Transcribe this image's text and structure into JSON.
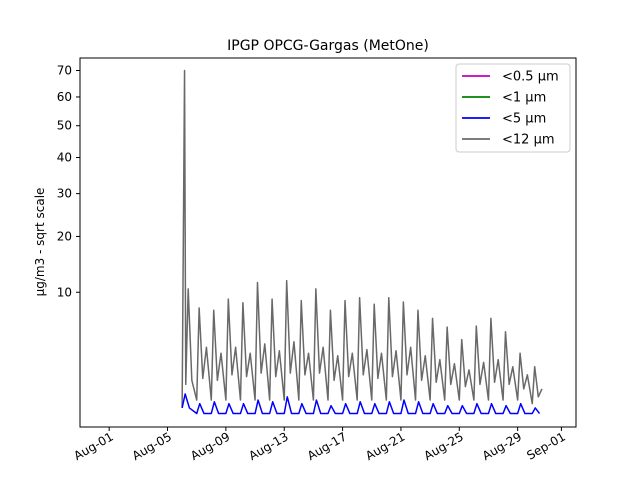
{
  "chart_data": {
    "type": "line",
    "title": "IPGP OPCG-Gargas (MetOne)",
    "xlabel": "",
    "ylabel": "µg/m3 - sqrt scale",
    "y_scale": "sqrt",
    "ylim": [
      0,
      75
    ],
    "yticks": [
      10,
      20,
      30,
      40,
      50,
      60,
      70
    ],
    "xlim": [
      "2023-07-30",
      "2023-09-02"
    ],
    "xticks": [
      {
        "date": "2023-08-01",
        "label": "Aug-01"
      },
      {
        "date": "2023-08-05",
        "label": "Aug-05"
      },
      {
        "date": "2023-08-09",
        "label": "Aug-09"
      },
      {
        "date": "2023-08-13",
        "label": "Aug-13"
      },
      {
        "date": "2023-08-17",
        "label": "Aug-17"
      },
      {
        "date": "2023-08-21",
        "label": "Aug-21"
      },
      {
        "date": "2023-08-25",
        "label": "Aug-25"
      },
      {
        "date": "2023-08-29",
        "label": "Aug-29"
      },
      {
        "date": "2023-09-01",
        "label": "Sep-01"
      }
    ],
    "legend_position": "top-right",
    "grid": false,
    "series": [
      {
        "name": "<0.5 µm",
        "color": "#bf00bf",
        "x": [],
        "y": []
      },
      {
        "name": "<1 µm",
        "color": "#008000",
        "x": [],
        "y": []
      },
      {
        "name": "<5 µm",
        "color": "#0000ff",
        "x": [
          "2023-08-06T00:00",
          "2023-08-06T05:00",
          "2023-08-06T12:00",
          "2023-08-07T00:00",
          "2023-08-07T05:00",
          "2023-08-07T12:00",
          "2023-08-08T00:00",
          "2023-08-08T05:00",
          "2023-08-08T12:00",
          "2023-08-09T00:00",
          "2023-08-09T05:00",
          "2023-08-09T12:00",
          "2023-08-10T00:00",
          "2023-08-10T05:00",
          "2023-08-10T12:00",
          "2023-08-11T00:00",
          "2023-08-11T05:00",
          "2023-08-11T12:00",
          "2023-08-12T00:00",
          "2023-08-12T05:00",
          "2023-08-12T12:00",
          "2023-08-13T00:00",
          "2023-08-13T05:00",
          "2023-08-13T12:00",
          "2023-08-14T00:00",
          "2023-08-14T05:00",
          "2023-08-14T12:00",
          "2023-08-15T00:00",
          "2023-08-15T05:00",
          "2023-08-15T12:00",
          "2023-08-16T00:00",
          "2023-08-16T05:00",
          "2023-08-16T12:00",
          "2023-08-17T00:00",
          "2023-08-17T05:00",
          "2023-08-17T12:00",
          "2023-08-18T00:00",
          "2023-08-18T05:00",
          "2023-08-18T12:00",
          "2023-08-19T00:00",
          "2023-08-19T05:00",
          "2023-08-19T12:00",
          "2023-08-20T00:00",
          "2023-08-20T05:00",
          "2023-08-20T12:00",
          "2023-08-21T00:00",
          "2023-08-21T05:00",
          "2023-08-21T12:00",
          "2023-08-22T00:00",
          "2023-08-22T05:00",
          "2023-08-22T12:00",
          "2023-08-23T00:00",
          "2023-08-23T05:00",
          "2023-08-23T12:00",
          "2023-08-24T00:00",
          "2023-08-24T05:00",
          "2023-08-24T12:00",
          "2023-08-25T00:00",
          "2023-08-25T05:00",
          "2023-08-25T12:00",
          "2023-08-26T00:00",
          "2023-08-26T05:00",
          "2023-08-26T12:00",
          "2023-08-27T00:00",
          "2023-08-27T05:00",
          "2023-08-27T12:00",
          "2023-08-28T00:00",
          "2023-08-28T05:00",
          "2023-08-28T12:00",
          "2023-08-29T00:00",
          "2023-08-29T05:00",
          "2023-08-29T12:00",
          "2023-08-30T00:00",
          "2023-08-30T05:00",
          "2023-08-30T12:00"
        ],
        "y": [
          0.2,
          0.6,
          0.2,
          0.1,
          0.3,
          0.1,
          0.1,
          0.35,
          0.1,
          0.1,
          0.3,
          0.1,
          0.1,
          0.3,
          0.1,
          0.1,
          0.4,
          0.1,
          0.1,
          0.35,
          0.1,
          0.1,
          0.5,
          0.1,
          0.1,
          0.3,
          0.1,
          0.1,
          0.4,
          0.1,
          0.1,
          0.25,
          0.1,
          0.1,
          0.3,
          0.1,
          0.1,
          0.35,
          0.1,
          0.1,
          0.3,
          0.1,
          0.1,
          0.35,
          0.1,
          0.1,
          0.4,
          0.1,
          0.1,
          0.35,
          0.1,
          0.1,
          0.3,
          0.1,
          0.1,
          0.25,
          0.1,
          0.1,
          0.25,
          0.1,
          0.1,
          0.3,
          0.1,
          0.1,
          0.3,
          0.1,
          0.1,
          0.25,
          0.1,
          0.1,
          0.3,
          0.1,
          0.1,
          0.2,
          0.1
        ]
      },
      {
        "name": "<12 µm",
        "color": "#696969",
        "x": [
          "2023-08-06T00:00",
          "2023-08-06T04:00",
          "2023-08-06T06:00",
          "2023-08-06T10:00",
          "2023-08-06T16:00",
          "2023-08-07T00:00",
          "2023-08-07T04:00",
          "2023-08-07T10:00",
          "2023-08-07T16:00",
          "2023-08-08T00:00",
          "2023-08-08T04:00",
          "2023-08-08T10:00",
          "2023-08-08T16:00",
          "2023-08-09T00:00",
          "2023-08-09T04:00",
          "2023-08-09T10:00",
          "2023-08-09T16:00",
          "2023-08-10T00:00",
          "2023-08-10T04:00",
          "2023-08-10T10:00",
          "2023-08-10T16:00",
          "2023-08-11T00:00",
          "2023-08-11T04:00",
          "2023-08-11T10:00",
          "2023-08-11T16:00",
          "2023-08-12T00:00",
          "2023-08-12T04:00",
          "2023-08-12T10:00",
          "2023-08-12T16:00",
          "2023-08-13T00:00",
          "2023-08-13T04:00",
          "2023-08-13T10:00",
          "2023-08-13T16:00",
          "2023-08-14T00:00",
          "2023-08-14T04:00",
          "2023-08-14T10:00",
          "2023-08-14T16:00",
          "2023-08-15T00:00",
          "2023-08-15T04:00",
          "2023-08-15T10:00",
          "2023-08-15T16:00",
          "2023-08-16T00:00",
          "2023-08-16T04:00",
          "2023-08-16T10:00",
          "2023-08-16T16:00",
          "2023-08-17T00:00",
          "2023-08-17T04:00",
          "2023-08-17T10:00",
          "2023-08-17T16:00",
          "2023-08-18T00:00",
          "2023-08-18T04:00",
          "2023-08-18T10:00",
          "2023-08-18T16:00",
          "2023-08-19T00:00",
          "2023-08-19T04:00",
          "2023-08-19T10:00",
          "2023-08-19T16:00",
          "2023-08-20T00:00",
          "2023-08-20T04:00",
          "2023-08-20T10:00",
          "2023-08-20T16:00",
          "2023-08-21T00:00",
          "2023-08-21T04:00",
          "2023-08-21T10:00",
          "2023-08-21T16:00",
          "2023-08-22T00:00",
          "2023-08-22T04:00",
          "2023-08-22T10:00",
          "2023-08-22T16:00",
          "2023-08-23T00:00",
          "2023-08-23T04:00",
          "2023-08-23T10:00",
          "2023-08-23T16:00",
          "2023-08-24T00:00",
          "2023-08-24T04:00",
          "2023-08-24T10:00",
          "2023-08-24T16:00",
          "2023-08-25T00:00",
          "2023-08-25T04:00",
          "2023-08-25T10:00",
          "2023-08-25T16:00",
          "2023-08-26T00:00",
          "2023-08-26T04:00",
          "2023-08-26T10:00",
          "2023-08-26T16:00",
          "2023-08-27T00:00",
          "2023-08-27T04:00",
          "2023-08-27T10:00",
          "2023-08-27T16:00",
          "2023-08-28T00:00",
          "2023-08-28T04:00",
          "2023-08-28T10:00",
          "2023-08-28T16:00",
          "2023-08-29T00:00",
          "2023-08-29T04:00",
          "2023-08-29T10:00",
          "2023-08-29T16:00",
          "2023-08-30T00:00",
          "2023-08-30T04:00",
          "2023-08-30T10:00",
          "2023-08-30T16:00"
        ],
        "y": [
          0.2,
          70,
          1,
          10.5,
          1.2,
          0.4,
          7.8,
          1.3,
          3.5,
          0.4,
          7.5,
          1.2,
          3.0,
          0.4,
          9.0,
          1.5,
          3.5,
          0.4,
          8.5,
          1.4,
          3.0,
          0.4,
          11.5,
          1.6,
          3.8,
          0.4,
          9.0,
          1.4,
          3.2,
          0.4,
          11.8,
          1.6,
          4.0,
          0.4,
          8.8,
          1.5,
          3.0,
          0.4,
          10.5,
          1.6,
          3.5,
          0.4,
          7.5,
          1.2,
          2.8,
          0.4,
          8.8,
          1.4,
          3.0,
          0.4,
          9.2,
          1.5,
          3.3,
          0.4,
          8.3,
          1.3,
          3.0,
          0.4,
          9.2,
          1.4,
          3.2,
          0.4,
          8.6,
          1.5,
          3.5,
          0.4,
          7.5,
          1.2,
          2.8,
          0.4,
          6.5,
          1.1,
          2.5,
          0.4,
          5.5,
          1.0,
          2.2,
          0.4,
          4.2,
          0.9,
          1.8,
          0.4,
          5.6,
          1.0,
          2.3,
          0.4,
          6.5,
          1.1,
          2.5,
          0.4,
          5.0,
          1.0,
          2.0,
          0.4,
          3.0,
          0.8,
          1.5,
          0.3,
          2.0,
          0.5,
          0.8
        ]
      }
    ]
  }
}
